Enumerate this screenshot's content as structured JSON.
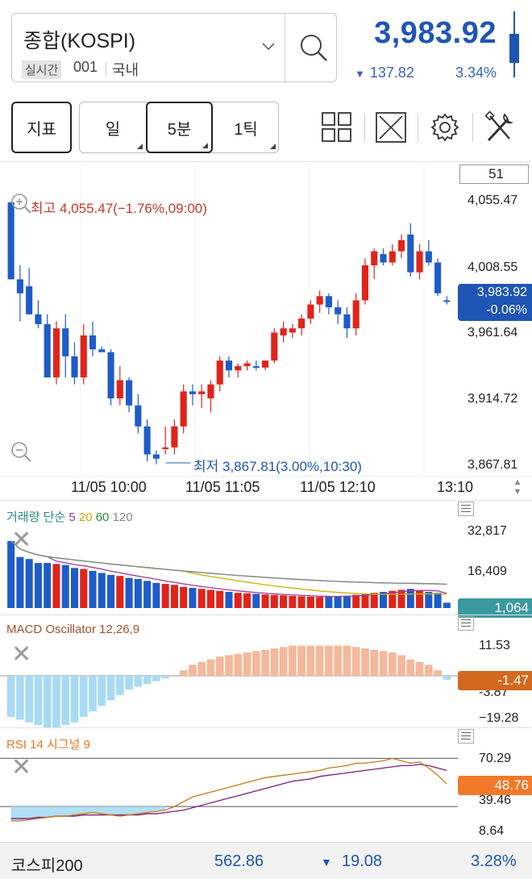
{
  "symbol": {
    "name": "종합(KOSPI)",
    "realtime_tag": "실시간",
    "code": "001",
    "market": "국내"
  },
  "quote": {
    "price": "3,983.92",
    "change": "137.82",
    "change_pct": "3.34%",
    "direction": "down"
  },
  "toolbar": {
    "indicator_label": "지표",
    "periods": [
      {
        "label": "일",
        "selected": false
      },
      {
        "label": "5분",
        "selected": true
      },
      {
        "label": "1틱",
        "selected": false
      }
    ],
    "icons": [
      "grid-layout-icon",
      "fullscreen-icon",
      "settings-gear-icon",
      "tools-icon"
    ]
  },
  "price_chart": {
    "count_box": "51",
    "axis_labels": [
      "4,055.47",
      "4,008.55",
      "3,961.64",
      "3,914.72",
      "3,867.81"
    ],
    "current_price_tag": "3,983.92",
    "current_change_tag": "-0.06%",
    "high_label": "최고 4,055.47(−1.76%,09:00)",
    "low_label": "최저 3,867.81(3.00%,10:30)",
    "time_labels": [
      "11/05 10:00",
      "11/05 11:05",
      "11/05 12:10",
      "13:10"
    ]
  },
  "volume_panel": {
    "title": "거래량 단순",
    "ma_labels": [
      "5",
      "20",
      "60",
      "120"
    ],
    "ma_colors": [
      "#a33aa3",
      "#c8b400",
      "#2e8b3c",
      "#8a8a8a"
    ],
    "axis_labels": [
      "32,817",
      "16,409"
    ],
    "current_tag": "1,064",
    "tag_color": "#3a9aa0"
  },
  "macd_panel": {
    "title": "MACD Oscillator 12,26,9",
    "axis_labels": [
      "11.53",
      "-3.87",
      "−19.28"
    ],
    "current_tag": "-1.47",
    "tag_color": "#d2691e"
  },
  "rsi_panel": {
    "title": "RSI 14 시그널 9",
    "axis_labels": [
      "70.29",
      "39.46",
      "8.64"
    ],
    "current_tag": "48.76",
    "tag_color": "#f07a2a"
  },
  "footer": {
    "name": "코스피200",
    "price": "562.86",
    "change": "19.08",
    "change_pct": "3.28%"
  },
  "chart_data": {
    "type": "candlestick",
    "interval": "5분",
    "candles_ohlc": [
      [
        4055,
        4055,
        4000,
        4000
      ],
      [
        4000,
        4010,
        3970,
        3990
      ],
      [
        3995,
        4008,
        3975,
        3975
      ],
      [
        3975,
        3985,
        3965,
        3968
      ],
      [
        3968,
        3975,
        3930,
        3930
      ],
      [
        3930,
        3970,
        3925,
        3965
      ],
      [
        3965,
        3975,
        3930,
        3945
      ],
      [
        3945,
        3955,
        3925,
        3930
      ],
      [
        3930,
        3968,
        3925,
        3960
      ],
      [
        3960,
        3970,
        3945,
        3950
      ],
      [
        3950,
        3952,
        3948,
        3948
      ],
      [
        3948,
        3950,
        3910,
        3915
      ],
      [
        3915,
        3938,
        3910,
        3928
      ],
      [
        3928,
        3930,
        3905,
        3910
      ],
      [
        3910,
        3918,
        3890,
        3895
      ],
      [
        3895,
        3900,
        3870,
        3875
      ],
      [
        3875,
        3878,
        3868,
        3872
      ],
      [
        3880,
        3895,
        3875,
        3880
      ],
      [
        3880,
        3900,
        3875,
        3895
      ],
      [
        3895,
        3925,
        3890,
        3920
      ],
      [
        3920,
        3925,
        3910,
        3918
      ],
      [
        3918,
        3925,
        3908,
        3920
      ],
      [
        3915,
        3928,
        3905,
        3925
      ],
      [
        3925,
        3945,
        3920,
        3942
      ],
      [
        3942,
        3945,
        3930,
        3935
      ],
      [
        3935,
        3940,
        3930,
        3938
      ],
      [
        3938,
        3942,
        3935,
        3940
      ],
      [
        3938,
        3942,
        3935,
        3937
      ],
      [
        3937,
        3942,
        3935,
        3942
      ],
      [
        3942,
        3965,
        3940,
        3962
      ],
      [
        3960,
        3970,
        3955,
        3965
      ],
      [
        3962,
        3968,
        3958,
        3965
      ],
      [
        3965,
        3975,
        3960,
        3972
      ],
      [
        3972,
        3985,
        3968,
        3982
      ],
      [
        3982,
        3992,
        3976,
        3988
      ],
      [
        3988,
        3990,
        3975,
        3980
      ],
      [
        3980,
        3985,
        3968,
        3975
      ],
      [
        3975,
        3980,
        3958,
        3965
      ],
      [
        3965,
        3990,
        3960,
        3985
      ],
      [
        3985,
        4015,
        3982,
        4010
      ],
      [
        4010,
        4022,
        4000,
        4020
      ],
      [
        4018,
        4022,
        4010,
        4012
      ],
      [
        4012,
        4025,
        4010,
        4020
      ],
      [
        4020,
        4032,
        4015,
        4028
      ],
      [
        4032,
        4040,
        4002,
        4005
      ],
      [
        4005,
        4025,
        4000,
        4020
      ],
      [
        4020,
        4028,
        4010,
        4012
      ],
      [
        4012,
        4015,
        3988,
        3990
      ],
      [
        3985,
        3988,
        3982,
        3984
      ]
    ],
    "volume": [
      32000,
      24000,
      23000,
      21000,
      21000,
      20500,
      20000,
      18500,
      18000,
      17000,
      16000,
      15000,
      14500,
      13500,
      13000,
      12000,
      11000,
      10500,
      10000,
      9000,
      8500,
      8000,
      7500,
      7000,
      6500,
      6000,
      5800,
      5500,
      5200,
      5000,
      4800,
      4500,
      4300,
      4100,
      4000,
      4200,
      4400,
      4600,
      5000,
      5500,
      6000,
      6500,
      7000,
      7500,
      8000,
      7000,
      6500,
      6000,
      1064
    ],
    "macd_oscillator": [
      -15,
      -16,
      -17,
      -18,
      -19,
      -19,
      -18,
      -17,
      -15,
      -13,
      -11,
      -9,
      -7,
      -5,
      -4,
      -3,
      -2,
      -1,
      0,
      2,
      4,
      5,
      6,
      7,
      7.5,
      8,
      8.5,
      9,
      9.5,
      10,
      10.5,
      11,
      11,
      11,
      11,
      11,
      11,
      11,
      10.5,
      10,
      9.5,
      9,
      8.5,
      7.5,
      6,
      5,
      4,
      2,
      -1.47
    ],
    "rsi": [
      18,
      18,
      19,
      20,
      21,
      22,
      22,
      23,
      24,
      25,
      24,
      23,
      22,
      23,
      24,
      25,
      26,
      27,
      30,
      34,
      38,
      40,
      42,
      44,
      46,
      48,
      50,
      52,
      54,
      55,
      56,
      57,
      58,
      59,
      60,
      62,
      63,
      64,
      66,
      66,
      67,
      68,
      70,
      68,
      66,
      67,
      62,
      56,
      48.76
    ],
    "rsi_signal": [
      20,
      20,
      20,
      21,
      21,
      22,
      22,
      22,
      23,
      23,
      23,
      23,
      23,
      23,
      23,
      24,
      24,
      25,
      26,
      27,
      29,
      31,
      33,
      35,
      37,
      39,
      41,
      43,
      45,
      47,
      49,
      51,
      52,
      53,
      55,
      56,
      57,
      58,
      59,
      60,
      61,
      62,
      63,
      64,
      64,
      65,
      64,
      62,
      60
    ],
    "price_axis": [
      "4,055.47",
      "4,008.55",
      "3,961.64",
      "3,914.72",
      "3,867.81"
    ],
    "price_range": [
      3867.81,
      4055.47
    ]
  }
}
